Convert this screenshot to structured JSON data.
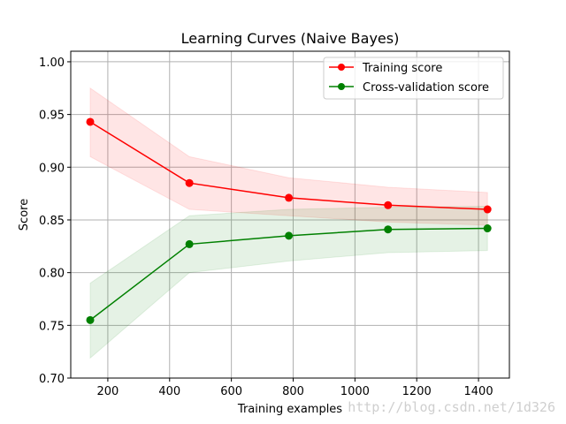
{
  "chart_data": {
    "type": "line",
    "title": "Learning Curves (Naive Bayes)",
    "xlabel": "Training examples",
    "ylabel": "Score",
    "xlim": [
      80,
      1500
    ],
    "ylim": [
      0.7,
      1.01
    ],
    "x_ticks": [
      200,
      400,
      600,
      800,
      1000,
      1200,
      1400
    ],
    "x_tick_labels": [
      "200",
      "400",
      "600",
      "800",
      "1000",
      "1200",
      "1400"
    ],
    "y_ticks": [
      0.7,
      0.75,
      0.8,
      0.85,
      0.9,
      0.95,
      1.0
    ],
    "y_tick_labels": [
      "0.70",
      "0.75",
      "0.80",
      "0.85",
      "0.90",
      "0.95",
      "1.00"
    ],
    "grid": true,
    "legend_position": "top-right",
    "x": [
      143,
      464,
      786,
      1107,
      1429
    ],
    "series": [
      {
        "name": "Training score",
        "color": "#ff0000",
        "fill_color": "#ff0000",
        "marker": "circle",
        "values": [
          0.943,
          0.885,
          0.871,
          0.864,
          0.86
        ],
        "band_lower": [
          0.91,
          0.86,
          0.854,
          0.848,
          0.845
        ],
        "band_upper": [
          0.975,
          0.91,
          0.89,
          0.881,
          0.876
        ]
      },
      {
        "name": "Cross-validation score",
        "color": "#008000",
        "fill_color": "#008000",
        "marker": "circle",
        "values": [
          0.755,
          0.827,
          0.835,
          0.841,
          0.842
        ],
        "band_lower": [
          0.719,
          0.8,
          0.811,
          0.819,
          0.821
        ],
        "band_upper": [
          0.79,
          0.854,
          0.86,
          0.862,
          0.863
        ]
      }
    ]
  },
  "watermark": "http://blog.csdn.net/1d326"
}
